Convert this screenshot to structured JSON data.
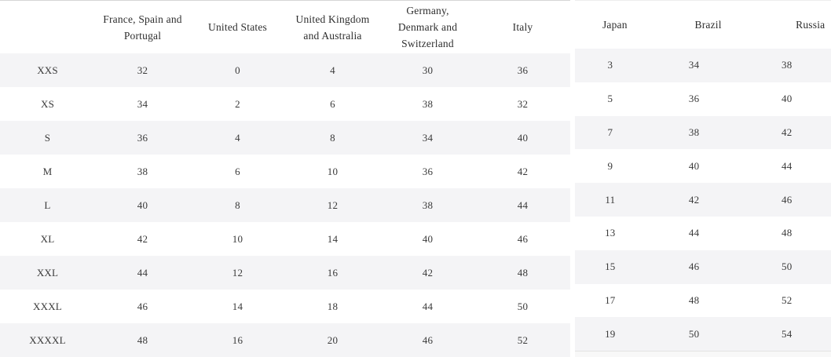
{
  "chart_data": [
    {
      "type": "table",
      "name": "size-conversion-western",
      "columns": [
        "",
        "France, Spain and Portugal",
        "United States",
        "United Kingdom and Australia",
        "Germany, Denmark and Switzerland",
        "Italy"
      ],
      "rows": [
        [
          "XXS",
          "32",
          "0",
          "4",
          "30",
          "36"
        ],
        [
          "XS",
          "34",
          "2",
          "6",
          "38",
          "32"
        ],
        [
          "S",
          "36",
          "4",
          "8",
          "34",
          "40"
        ],
        [
          "M",
          "38",
          "6",
          "10",
          "36",
          "42"
        ],
        [
          "L",
          "40",
          "8",
          "12",
          "38",
          "44"
        ],
        [
          "XL",
          "42",
          "10",
          "14",
          "40",
          "46"
        ],
        [
          "XXL",
          "44",
          "12",
          "16",
          "42",
          "48"
        ],
        [
          "XXXL",
          "46",
          "14",
          "18",
          "44",
          "50"
        ],
        [
          "XXXXL",
          "48",
          "16",
          "20",
          "46",
          "52"
        ]
      ],
      "layout_hints": {
        "stripe_rows": "odd",
        "grid": "off",
        "header_lines": 2
      }
    },
    {
      "type": "table",
      "name": "size-conversion-eastern",
      "columns": [
        "Japan",
        "Brazil",
        "Russia"
      ],
      "rows": [
        [
          "3",
          "34",
          "38"
        ],
        [
          "5",
          "36",
          "40"
        ],
        [
          "7",
          "38",
          "42"
        ],
        [
          "9",
          "40",
          "44"
        ],
        [
          "11",
          "42",
          "46"
        ],
        [
          "13",
          "44",
          "48"
        ],
        [
          "15",
          "46",
          "50"
        ],
        [
          "17",
          "48",
          "52"
        ],
        [
          "19",
          "50",
          "54"
        ]
      ],
      "layout_hints": {
        "stripe_rows": "odd",
        "grid": "off",
        "header_lines": 1
      }
    }
  ],
  "colors": {
    "stripe": "#f4f4f6",
    "header_text": "#2e2e2e",
    "cell_text": "#3a3a3a",
    "left_table_top_border": "#d6d6d6",
    "right_table_top_border": "#ededed",
    "right_table_bottom_border": "#e3e3e3",
    "right_table_bottom_strip": "#f8f8f8",
    "background": "#ffffff"
  }
}
